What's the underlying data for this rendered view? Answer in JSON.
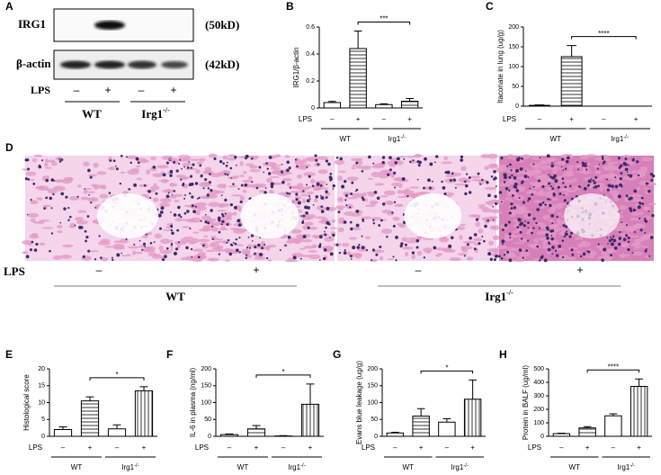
{
  "blot": {
    "panel": "A",
    "rows": [
      "IRG1",
      "β-actin"
    ],
    "sizes": [
      "(50kD)",
      "(42kD)"
    ],
    "lps_label": "LPS",
    "lps": [
      "–",
      "+",
      "–",
      "+"
    ],
    "groups": [
      {
        "label": "WT"
      },
      {
        "label": "Irg1",
        "sup": "-/-"
      }
    ]
  },
  "histology": {
    "panel": "D",
    "lps_label": "LPS",
    "lps": [
      "–",
      "+",
      "–",
      "+"
    ],
    "groups": [
      {
        "label": "WT"
      },
      {
        "label": "Irg1",
        "sup": "-/-"
      }
    ]
  },
  "chart_data": [
    {
      "type": "bar",
      "panel": "B",
      "ylabel": "IRG1/β-actin",
      "lps_label": "LPS",
      "categories": [
        "–",
        "+",
        "–",
        "+"
      ],
      "groups": [
        {
          "label": "WT"
        },
        {
          "label": "Irg1",
          "sup": "-/-"
        }
      ],
      "values": [
        0.04,
        0.44,
        0.025,
        0.05
      ],
      "errors": [
        0.008,
        0.13,
        0.006,
        0.02
      ],
      "patterns": [
        "none",
        "horizontal",
        "none",
        "horizontal"
      ],
      "ylim": [
        0,
        0.6
      ],
      "yticks": [
        0,
        0.2,
        0.4,
        0.6
      ],
      "significance": "***"
    },
    {
      "type": "bar",
      "panel": "C",
      "ylabel": "Itaconate in lung  (ug/g)",
      "lps_label": "LPS",
      "categories": [
        "–",
        "+",
        "–",
        "+"
      ],
      "groups": [
        {
          "label": "WT"
        },
        {
          "label": "Irg1",
          "sup": "-/-"
        }
      ],
      "values": [
        2,
        125,
        0,
        0
      ],
      "errors": [
        1,
        28,
        0,
        0
      ],
      "patterns": [
        "none",
        "horizontal",
        "none",
        "horizontal"
      ],
      "ylim": [
        0,
        200
      ],
      "yticks": [
        0,
        50,
        100,
        150,
        200
      ],
      "significance": "****"
    },
    {
      "type": "bar",
      "panel": "E",
      "ylabel": "Histological score",
      "lps_label": "LPS",
      "categories": [
        "–",
        "+",
        "–",
        "+"
      ],
      "groups": [
        {
          "label": "WT"
        },
        {
          "label": "Irg1",
          "sup": "-/-"
        }
      ],
      "values": [
        2,
        10.5,
        2.2,
        13.5
      ],
      "errors": [
        0.8,
        1.2,
        1.2,
        1.2
      ],
      "patterns": [
        "none",
        "horizontal",
        "none",
        "vertical"
      ],
      "ylim": [
        0,
        20
      ],
      "yticks": [
        0,
        5,
        10,
        15,
        20
      ],
      "significance": "*"
    },
    {
      "type": "bar",
      "panel": "F",
      "ylabel": "IL-6 in plasma (ng/ml)",
      "lps_label": "LPS",
      "categories": [
        "–",
        "+",
        "–",
        "+"
      ],
      "groups": [
        {
          "label": "WT"
        },
        {
          "label": "Irg1",
          "sup": "-/-"
        }
      ],
      "values": [
        5,
        22,
        1,
        95
      ],
      "errors": [
        2,
        10,
        1,
        60
      ],
      "patterns": [
        "none",
        "horizontal",
        "none",
        "vertical"
      ],
      "ylim": [
        0,
        200
      ],
      "yticks": [
        0,
        50,
        100,
        150,
        200
      ],
      "significance": "*"
    },
    {
      "type": "bar",
      "panel": "G",
      "ylabel": "Evans blue leakage (ug/g)",
      "lps_label": "LPS",
      "categories": [
        "–",
        "+",
        "–",
        "+"
      ],
      "groups": [
        {
          "label": "WT"
        },
        {
          "label": "Irg1",
          "sup": "-/-"
        }
      ],
      "values": [
        10,
        60,
        42,
        110
      ],
      "errors": [
        2,
        22,
        10,
        57
      ],
      "patterns": [
        "none",
        "horizontal",
        "none",
        "vertical"
      ],
      "ylim": [
        0,
        200
      ],
      "yticks": [
        0,
        50,
        100,
        150,
        200
      ],
      "significance": "*"
    },
    {
      "type": "bar",
      "panel": "H",
      "ylabel": "Protein in BALF (ug/ml)",
      "lps_label": "LPS",
      "categories": [
        "–",
        "+",
        "–",
        "+"
      ],
      "groups": [
        {
          "label": "WT"
        },
        {
          "label": "Irg1",
          "sup": "-/-"
        }
      ],
      "values": [
        20,
        62,
        152,
        370
      ],
      "errors": [
        3,
        10,
        15,
        55
      ],
      "patterns": [
        "none",
        "horizontal",
        "none",
        "vertical"
      ],
      "ylim": [
        0,
        500
      ],
      "yticks": [
        0,
        100,
        200,
        300,
        400,
        500
      ],
      "significance": "****"
    }
  ]
}
